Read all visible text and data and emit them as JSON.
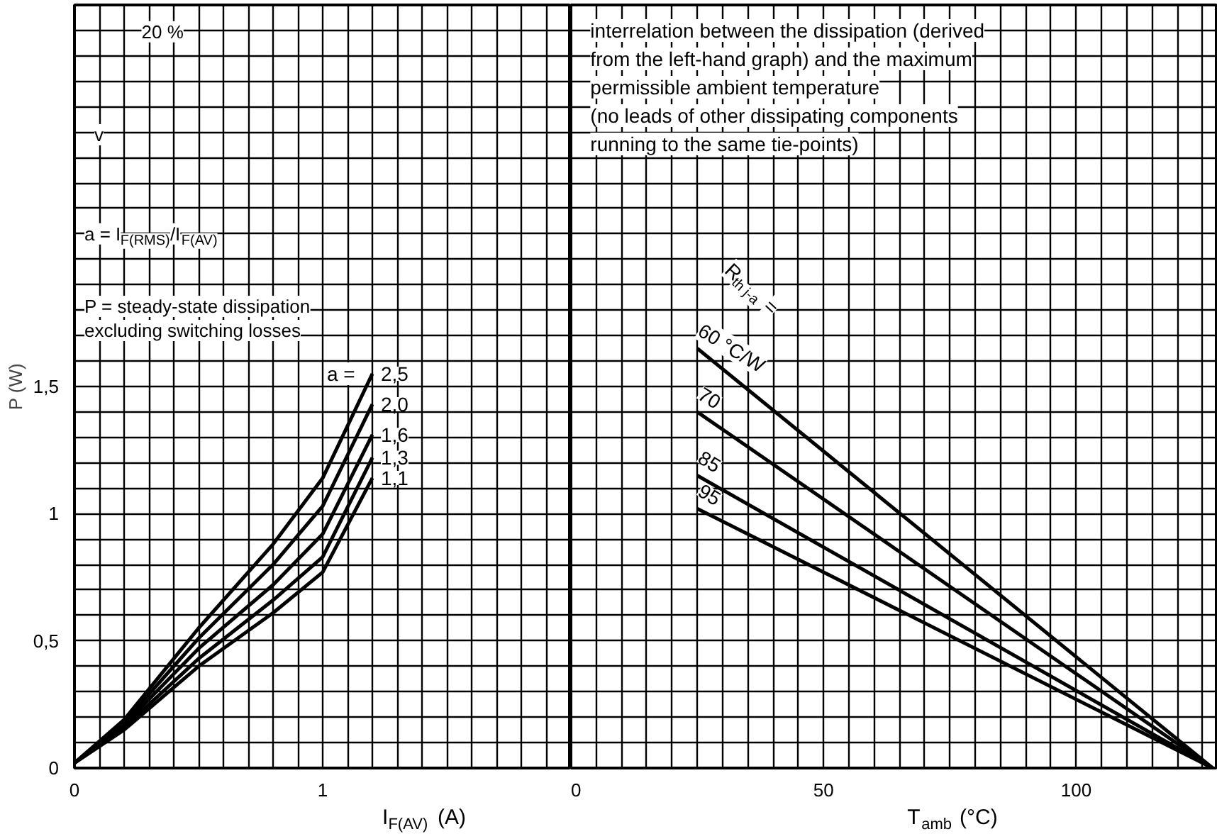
{
  "chart_data": [
    {
      "type": "line",
      "xlabel": "I$_{F(AV)}$ (A)",
      "ylabel": "P (W)",
      "x": [
        0,
        0.2,
        0.5,
        0.8,
        1.0,
        1.2
      ],
      "series": [
        {
          "name": "2,5",
          "color": "#000000",
          "values": [
            0.02,
            0.19,
            0.55,
            0.88,
            1.14,
            1.55
          ]
        },
        {
          "name": "2,0",
          "color": "#000000",
          "values": [
            0.02,
            0.18,
            0.51,
            0.8,
            1.03,
            1.43
          ]
        },
        {
          "name": "1,6",
          "color": "#000000",
          "values": [
            0.02,
            0.17,
            0.47,
            0.72,
            0.92,
            1.31
          ]
        },
        {
          "name": "1,3",
          "color": "#000000",
          "values": [
            0.02,
            0.16,
            0.43,
            0.66,
            0.83,
            1.22
          ]
        },
        {
          "name": "1,1",
          "color": "#000000",
          "values": [
            0.02,
            0.15,
            0.4,
            0.61,
            0.77,
            1.14
          ]
        }
      ],
      "xlim": [
        0,
        2
      ],
      "ylim": [
        0,
        3.0
      ],
      "xticks": [
        0,
        {
          "value": 0.1,
          "label": null
        },
        {
          "value": 0.2,
          "label": null
        },
        {
          "value": 0.3,
          "label": null
        },
        {
          "value": 0.4,
          "label": null
        },
        {
          "value": 0.5,
          "label": null
        },
        {
          "value": 0.6,
          "label": null
        },
        {
          "value": 0.7,
          "label": null
        },
        {
          "value": 0.8,
          "label": null
        },
        {
          "value": 0.9,
          "label": null
        },
        1,
        {
          "value": 1.1,
          "label": null
        },
        {
          "value": 1.2,
          "label": null
        },
        {
          "value": 1.3,
          "label": null
        },
        {
          "value": 1.4,
          "label": null
        },
        {
          "value": 1.5,
          "label": null
        },
        {
          "value": 1.6,
          "label": null
        },
        {
          "value": 1.7,
          "label": null
        },
        {
          "value": 1.8,
          "label": null
        },
        {
          "value": 1.9,
          "label": null
        },
        {
          "value": 2.0,
          "label": null
        }
      ],
      "yticks": [
        0,
        {
          "value": 0.1,
          "label": null
        },
        {
          "value": 0.2,
          "label": null
        },
        {
          "value": 0.3,
          "label": null
        },
        {
          "value": 0.4,
          "label": null
        },
        {
          "value": 0.5,
          "label": "0,5"
        },
        {
          "value": 0.6,
          "label": null
        },
        {
          "value": 0.7,
          "label": null
        },
        {
          "value": 0.8,
          "label": null
        },
        {
          "value": 0.9,
          "label": null
        },
        1,
        {
          "value": 1.1,
          "label": null
        },
        {
          "value": 1.2,
          "label": null
        },
        {
          "value": 1.3,
          "label": null
        },
        {
          "value": 1.4,
          "label": null
        },
        {
          "value": 1.5,
          "label": "1,5"
        },
        {
          "value": 1.6,
          "label": null
        },
        {
          "value": 1.7,
          "label": null
        },
        {
          "value": 1.8,
          "label": null
        },
        {
          "value": 1.9,
          "label": null
        },
        {
          "value": 2.0,
          "label": null
        },
        {
          "value": 2.1,
          "label": null
        },
        {
          "value": 2.2,
          "label": null
        },
        {
          "value": 2.3,
          "label": null
        },
        {
          "value": 2.4,
          "label": null
        },
        {
          "value": 2.5,
          "label": null
        },
        {
          "value": 2.6,
          "label": null
        },
        {
          "value": 2.7,
          "label": null
        },
        {
          "value": 2.8,
          "label": null
        },
        {
          "value": 2.9,
          "label": null
        },
        {
          "value": 3.0,
          "label": null
        }
      ],
      "grid": true,
      "legend": false,
      "marker": "none",
      "line_style": "solid",
      "annotations": [
        "20 %",
        "v",
        "a = I$_{F(RMS)}$/I$_{F(AV)}$",
        "P = steady-state dissipation excluding switching losses",
        "a ="
      ]
    },
    {
      "type": "line",
      "xlabel": "T$_{amb}$ (°C)",
      "x": [
        25,
        127
      ],
      "series": [
        {
          "name": "60 °C/W",
          "color": "#000000",
          "values": [
            1.65,
            0
          ]
        },
        {
          "name": "70",
          "color": "#000000",
          "values": [
            1.4,
            0
          ]
        },
        {
          "name": "85",
          "color": "#000000",
          "values": [
            1.15,
            0
          ]
        },
        {
          "name": "95",
          "color": "#000000",
          "values": [
            1.02,
            0
          ]
        }
      ],
      "xlim": [
        0,
        128
      ],
      "ylim": [
        0,
        3.0
      ],
      "xticks": [
        0,
        {
          "value": 5,
          "label": null
        },
        {
          "value": 10,
          "label": null
        },
        {
          "value": 15,
          "label": null
        },
        {
          "value": 20,
          "label": null
        },
        {
          "value": 25,
          "label": null
        },
        {
          "value": 30,
          "label": null
        },
        {
          "value": 35,
          "label": null
        },
        {
          "value": 40,
          "label": null
        },
        {
          "value": 45,
          "label": null
        },
        50,
        {
          "value": 55,
          "label": null
        },
        {
          "value": 60,
          "label": null
        },
        {
          "value": 65,
          "label": null
        },
        {
          "value": 70,
          "label": null
        },
        {
          "value": 75,
          "label": null
        },
        {
          "value": 80,
          "label": null
        },
        {
          "value": 85,
          "label": null
        },
        {
          "value": 90,
          "label": null
        },
        {
          "value": 95,
          "label": null
        },
        100,
        {
          "value": 105,
          "label": null
        },
        {
          "value": 110,
          "label": null
        },
        {
          "value": 115,
          "label": null
        },
        {
          "value": 120,
          "label": null
        },
        {
          "value": 125,
          "label": null
        }
      ],
      "yticks": [
        0,
        {
          "value": 0.1,
          "label": null
        },
        {
          "value": 0.2,
          "label": null
        },
        {
          "value": 0.3,
          "label": null
        },
        {
          "value": 0.4,
          "label": null
        },
        {
          "value": 0.5,
          "label": null
        },
        {
          "value": 0.6,
          "label": null
        },
        {
          "value": 0.7,
          "label": null
        },
        {
          "value": 0.8,
          "label": null
        },
        {
          "value": 0.9,
          "label": null
        },
        {
          "value": 1.0,
          "label": null
        },
        {
          "value": 1.1,
          "label": null
        },
        {
          "value": 1.2,
          "label": null
        },
        {
          "value": 1.3,
          "label": null
        },
        {
          "value": 1.4,
          "label": null
        },
        {
          "value": 1.5,
          "label": null
        },
        {
          "value": 1.6,
          "label": null
        },
        {
          "value": 1.7,
          "label": null
        },
        {
          "value": 1.8,
          "label": null
        },
        {
          "value": 1.9,
          "label": null
        },
        {
          "value": 2.0,
          "label": null
        },
        {
          "value": 2.1,
          "label": null
        },
        {
          "value": 2.2,
          "label": null
        },
        {
          "value": 2.3,
          "label": null
        },
        {
          "value": 2.4,
          "label": null
        },
        {
          "value": 2.5,
          "label": null
        },
        {
          "value": 2.6,
          "label": null
        },
        {
          "value": 2.7,
          "label": null
        },
        {
          "value": 2.8,
          "label": null
        },
        {
          "value": 2.9,
          "label": null
        },
        {
          "value": 3.0,
          "label": null
        }
      ],
      "tick_labels": "x",
      "grid": true,
      "legend": false,
      "marker": "none",
      "line_style": "solid",
      "annotations": [
        "interrelation between the dissipation (derived from the left-hand graph) and the maximum permissible ambient temperature",
        "(no leads of other dissipating components running to the same tie-points)",
        "R$_{th j-a}$ ="
      ]
    }
  ]
}
